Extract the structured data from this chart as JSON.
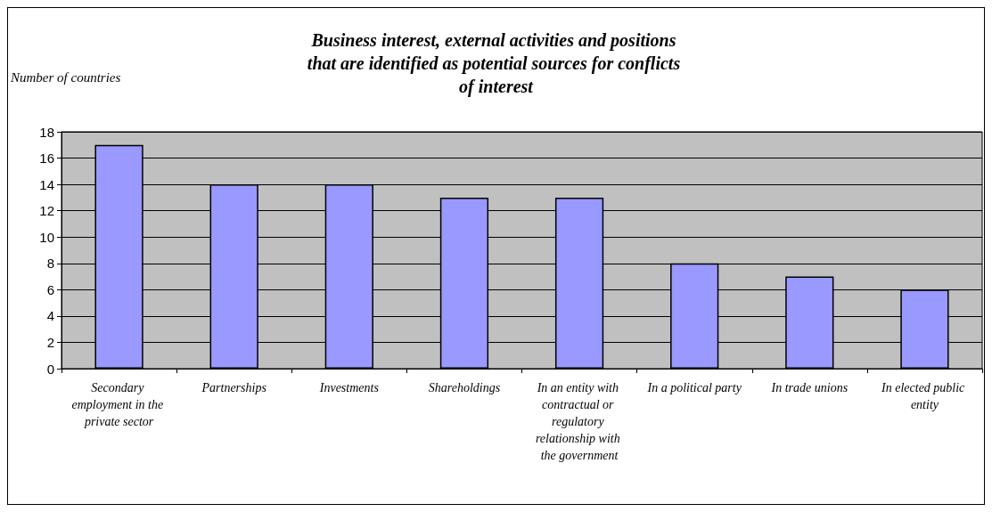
{
  "chart_data": {
    "type": "bar",
    "title": "Business interest, external activities and positions that are identified as potential sources for conflicts of interest",
    "ylabel": "Number of countries",
    "categories": [
      "Secondary employment in the private sector",
      "Partnerships",
      "Investments",
      "Shareholdings",
      "In an entity with contractual or regulatory relationship with the government",
      "In a political party",
      "In trade unions",
      "In elected public entity"
    ],
    "values": [
      17,
      14,
      14,
      13,
      13,
      8,
      7,
      6
    ],
    "color": "#9999ff",
    "ylim": [
      0,
      18
    ],
    "yticks": [
      0,
      2,
      4,
      6,
      8,
      10,
      12,
      14,
      16,
      18
    ],
    "grid": "y"
  }
}
